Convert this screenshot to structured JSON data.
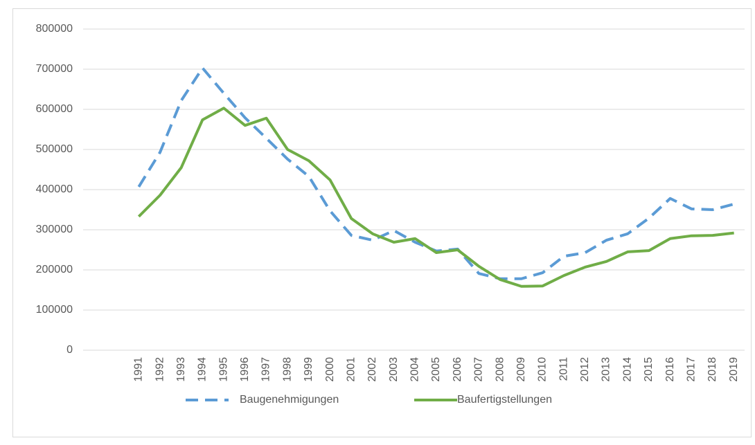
{
  "chart_data": {
    "type": "line",
    "categories": [
      "1991",
      "1992",
      "1993",
      "1994",
      "1995",
      "1996",
      "1997",
      "1998",
      "1999",
      "2000",
      "2001",
      "2002",
      "2003",
      "2004",
      "2005",
      "2006",
      "2007",
      "2008",
      "2009",
      "2010",
      "2011",
      "2012",
      "2013",
      "2014",
      "2015",
      "2016",
      "2017",
      "2018",
      "2019"
    ],
    "series": [
      {
        "name": "Baugenehmigungen",
        "color": "#5b9bd5",
        "dashed": true,
        "values": [
          407000,
          493000,
          622000,
          703000,
          640000,
          579000,
          528000,
          476000,
          433000,
          347000,
          286000,
          274000,
          298000,
          269000,
          247000,
          252000,
          191000,
          178000,
          178000,
          193000,
          234000,
          243000,
          274000,
          290000,
          329000,
          378000,
          352000,
          350000,
          364000
        ]
      },
      {
        "name": "Baufertigstellungen",
        "color": "#70ad47",
        "dashed": false,
        "values": [
          333000,
          386000,
          455000,
          574000,
          603000,
          560000,
          578000,
          500000,
          472000,
          424000,
          328000,
          290000,
          269000,
          278000,
          243000,
          250000,
          209000,
          176000,
          159000,
          160000,
          186000,
          207000,
          221000,
          245000,
          248000,
          278000,
          285000,
          286000,
          292000
        ]
      }
    ],
    "ylim": [
      0,
      800000
    ],
    "yticks": [
      0,
      100000,
      200000,
      300000,
      400000,
      500000,
      600000,
      700000,
      800000
    ],
    "grid": true,
    "legend": "bottom"
  }
}
